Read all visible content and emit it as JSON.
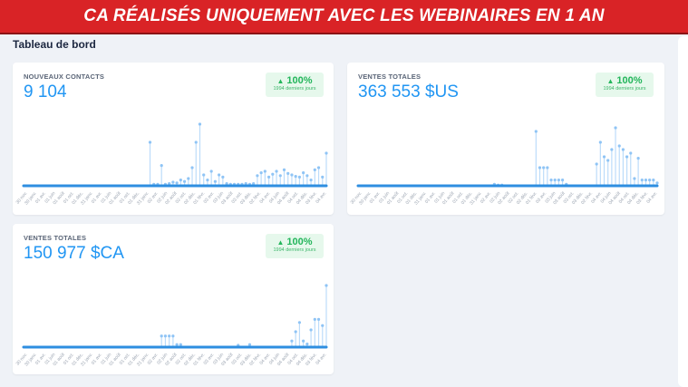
{
  "banner": {
    "title": "CA RÉALISÉS UNIQUEMENT AVEC LES WEBINAIRES EN 1 AN"
  },
  "page_title": "Tableau de bord",
  "colors": {
    "accent": "#2196f3",
    "banner": "#d92326",
    "positive": "#22b55a"
  },
  "cards": [
    {
      "label": "NOUVEAUX CONTACTS",
      "value": "9 104",
      "badge": {
        "icon": "triangle-up-icon",
        "percent": "100%",
        "period": "1994 derniers jours"
      }
    },
    {
      "label": "VENTES TOTALES",
      "value": "363 553 $US",
      "badge": {
        "icon": "triangle-up-icon",
        "percent": "100%",
        "period": "1994 derniers jours"
      }
    },
    {
      "label": "VENTES TOTALES",
      "value": "150 977 $CA",
      "badge": {
        "icon": "triangle-up-icon",
        "percent": "100%",
        "period": "1994 derniers jours"
      }
    }
  ],
  "chart_data": [
    {
      "type": "line",
      "title": "NOUVEAUX CONTACTS",
      "grid": false,
      "x_ticks": [
        "30 nov.",
        "30 janv.",
        "01 avr.",
        "01 juin",
        "01 août",
        "01 oct.",
        "01 déc.",
        "31 janv.",
        "01 avr.",
        "01 juin",
        "01 août",
        "01 oct.",
        "01 déc.",
        "31 janv.",
        "02 avr.",
        "02 juin",
        "02 août",
        "02 oct.",
        "02 déc.",
        "01 févr.",
        "03 avr.",
        "03 juin",
        "03 août",
        "03 oct.",
        "03 déc.",
        "02 févr.",
        "04 avr.",
        "04 juin",
        "04 août",
        "04 oct.",
        "04 déc.",
        "03 févr.",
        "04 avr."
      ],
      "values": [
        0,
        0,
        0,
        0,
        0,
        0,
        0,
        0,
        0,
        0,
        0,
        0,
        0,
        0,
        0,
        0,
        0,
        0,
        0,
        0,
        0,
        0,
        0,
        0,
        0,
        0,
        0,
        0,
        0,
        0,
        0,
        0,
        0,
        60,
        2,
        2,
        28,
        2,
        3,
        5,
        4,
        8,
        6,
        10,
        25,
        60,
        85,
        15,
        8,
        20,
        6,
        15,
        12,
        3,
        2,
        2,
        2,
        2,
        3,
        2,
        3,
        14,
        18,
        20,
        12,
        16,
        20,
        14,
        22,
        17,
        15,
        13,
        12,
        18,
        14,
        8,
        22,
        25,
        12,
        45
      ]
    },
    {
      "type": "line",
      "title": "VENTES TOTALES",
      "grid": false,
      "x_ticks": [
        "30 nov.",
        "30 janv.",
        "01 avr.",
        "01 juin",
        "01 août",
        "01 oct.",
        "01 déc.",
        "31 janv.",
        "01 avr.",
        "01 juin",
        "01 août",
        "01 oct.",
        "01 déc.",
        "31 janv.",
        "02 avr.",
        "02 juin",
        "02 août",
        "02 oct.",
        "02 déc.",
        "01 févr.",
        "03 avr.",
        "03 juin",
        "03 août",
        "03 oct.",
        "03 déc.",
        "02 févr.",
        "04 avr.",
        "04 juin",
        "04 août",
        "04 oct.",
        "04 déc.",
        "03 févr.",
        "04 avr."
      ],
      "values": [
        0,
        0,
        0,
        0,
        0,
        0,
        0,
        0,
        0,
        0,
        0,
        0,
        0,
        0,
        0,
        0,
        0,
        0,
        0,
        0,
        0,
        0,
        0,
        0,
        0,
        0,
        0,
        0,
        0,
        0,
        0,
        0,
        0,
        0,
        0,
        0,
        2,
        1,
        1,
        0,
        0,
        0,
        0,
        0,
        0,
        0,
        0,
        75,
        25,
        25,
        25,
        8,
        8,
        8,
        8,
        2,
        0,
        0,
        0,
        0,
        0,
        0,
        0,
        30,
        60,
        40,
        35,
        50,
        80,
        55,
        50,
        40,
        45,
        10,
        38,
        8,
        8,
        8,
        8,
        4
      ]
    },
    {
      "type": "line",
      "title": "VENTES TOTALES",
      "grid": false,
      "x_ticks": [
        "30 nov.",
        "30 janv.",
        "01 avr.",
        "01 juin",
        "01 août",
        "01 oct.",
        "01 déc.",
        "31 janv.",
        "01 avr.",
        "01 juin",
        "01 août",
        "01 oct.",
        "01 déc.",
        "31 janv.",
        "02 avr.",
        "02 juin",
        "02 août",
        "02 oct.",
        "02 déc.",
        "01 févr.",
        "03 avr.",
        "03 juin",
        "03 août",
        "03 oct.",
        "03 déc.",
        "02 févr.",
        "04 avr.",
        "04 juin",
        "04 août",
        "04 oct.",
        "04 déc.",
        "03 févr.",
        "04 avr."
      ],
      "values": [
        0,
        0,
        0,
        0,
        0,
        0,
        0,
        0,
        0,
        0,
        0,
        0,
        0,
        0,
        0,
        0,
        0,
        0,
        0,
        0,
        0,
        0,
        0,
        0,
        0,
        0,
        0,
        0,
        0,
        0,
        0,
        0,
        0,
        0,
        0,
        0,
        18,
        18,
        18,
        18,
        4,
        4,
        0,
        0,
        0,
        0,
        0,
        0,
        0,
        0,
        0,
        0,
        0,
        0,
        0,
        0,
        3,
        0,
        0,
        4,
        0,
        0,
        0,
        0,
        0,
        0,
        0,
        0,
        0,
        0,
        10,
        25,
        40,
        10,
        5,
        28,
        45,
        45,
        35,
        100
      ]
    }
  ]
}
